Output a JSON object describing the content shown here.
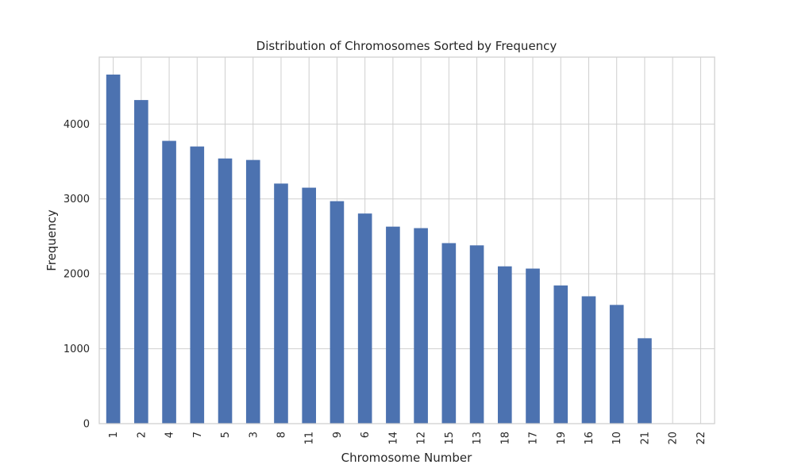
{
  "chart_data": {
    "type": "bar",
    "title": "Distribution of Chromosomes Sorted by Frequency",
    "xlabel": "Chromosome Number",
    "ylabel": "Frequency",
    "categories": [
      "1",
      "2",
      "4",
      "7",
      "5",
      "3",
      "8",
      "11",
      "9",
      "6",
      "14",
      "12",
      "15",
      "13",
      "18",
      "17",
      "19",
      "16",
      "10",
      "21",
      "20",
      "22"
    ],
    "values": [
      4660,
      4320,
      3775,
      3700,
      3540,
      3520,
      3205,
      3150,
      2970,
      2805,
      2630,
      2610,
      2410,
      2380,
      2100,
      2070,
      1845,
      1700,
      1585,
      1140,
      0,
      0
    ],
    "yticks": [
      0,
      1000,
      2000,
      3000,
      4000
    ],
    "ylim": [
      0,
      4893
    ],
    "grid": true,
    "bar_color": "#4c72b0"
  }
}
